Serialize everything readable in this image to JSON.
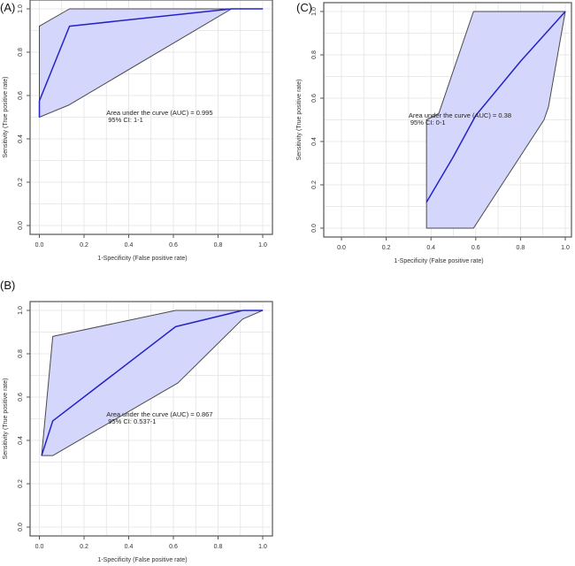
{
  "chart_data": [
    {
      "type": "line",
      "panel_label": "(A)",
      "title": "",
      "xlabel": "1-Specificity (False positive rate)",
      "ylabel": "Sensitivity (True positive rate)",
      "xlim": [
        0,
        1
      ],
      "ylim": [
        0,
        1
      ],
      "xticks": [
        "0.0",
        "0.2",
        "0.4",
        "0.6",
        "0.8",
        "1.0"
      ],
      "yticks": [
        "0.0",
        "0.2",
        "0.4",
        "0.6",
        "0.8",
        "1.0"
      ],
      "grid": true,
      "annotation": [
        "Area under the curve (AUC) = 0.995",
        "95% CI: 1-1"
      ],
      "series": [
        {
          "name": "ROC curve",
          "color": "#2323c8",
          "x": [
            0,
            0,
            0.135,
            0.86,
            1.0
          ],
          "y": [
            0.5,
            0.575,
            0.92,
            1.0,
            1.0
          ]
        },
        {
          "name": "95% CI band",
          "color": "#d5d6fb",
          "upper": {
            "x": [
              0,
              0,
              0.135,
              1.0
            ],
            "y": [
              0.5,
              0.92,
              1.0,
              1.0
            ]
          },
          "lower": {
            "x": [
              0,
              0.13,
              0.86,
              1.0
            ],
            "y": [
              0.5,
              0.555,
              1.0,
              1.0
            ]
          }
        }
      ]
    },
    {
      "type": "line",
      "panel_label": "(B)",
      "title": "",
      "xlabel": "1-Specificity (False positive rate)",
      "ylabel": "Sensitivity (True positive rate)",
      "xlim": [
        0,
        1
      ],
      "ylim": [
        0,
        1
      ],
      "xticks": [
        "0.0",
        "0.2",
        "0.4",
        "0.6",
        "0.8",
        "1.0"
      ],
      "yticks": [
        "0.0",
        "0.2",
        "0.4",
        "0.6",
        "0.8",
        "1.0"
      ],
      "grid": true,
      "annotation": [
        "Area under the curve (AUC) = 0.867",
        "95% CI: 0.537-1"
      ],
      "series": [
        {
          "name": "ROC curve",
          "color": "#2323c8",
          "x": [
            0.01,
            0.06,
            0.61,
            0.91,
            1.0
          ],
          "y": [
            0.33,
            0.49,
            0.925,
            1.0,
            1.0
          ]
        },
        {
          "name": "95% CI band",
          "color": "#d5d6fb",
          "upper": {
            "x": [
              0.01,
              0.06,
              0.61,
              1.0
            ],
            "y": [
              0.33,
              0.88,
              1.0,
              1.0
            ]
          },
          "lower": {
            "x": [
              0.01,
              0.06,
              0.62,
              0.91,
              1.0
            ],
            "y": [
              0.33,
              0.33,
              0.665,
              0.96,
              1.0
            ]
          }
        }
      ]
    },
    {
      "type": "line",
      "panel_label": "(C)",
      "title": "",
      "xlabel": "1-Specificity (False positive rate)",
      "ylabel": "Sensitivity (True positive rate)",
      "xlim": [
        0,
        1
      ],
      "ylim": [
        0,
        1
      ],
      "xticks": [
        "0.0",
        "0.2",
        "0.4",
        "0.6",
        "0.8",
        "1.0"
      ],
      "yticks": [
        "0.0",
        "0.2",
        "0.4",
        "0.6",
        "0.8",
        "1.0"
      ],
      "grid": true,
      "annotation": [
        "Area under the curve (AUC) = 0.38",
        "95% CI: 0-1"
      ],
      "series": [
        {
          "name": "ROC curve",
          "color": "#2323c8",
          "x": [
            0.38,
            0.5,
            0.6,
            0.8,
            1.0
          ],
          "y": [
            0.12,
            0.33,
            0.52,
            0.77,
            1.0
          ]
        },
        {
          "name": "95% CI band",
          "color": "#d5d6fb",
          "upper": {
            "x": [
              0.38,
              0.38,
              0.435,
              0.59,
              1.0
            ],
            "y": [
              0.0,
              0.5,
              0.53,
              1.0,
              1.0
            ]
          },
          "lower": {
            "x": [
              0.38,
              0.59,
              0.905,
              0.925,
              1.0
            ],
            "y": [
              0.0,
              0.0,
              0.5,
              0.56,
              1.0
            ]
          }
        }
      ]
    }
  ]
}
